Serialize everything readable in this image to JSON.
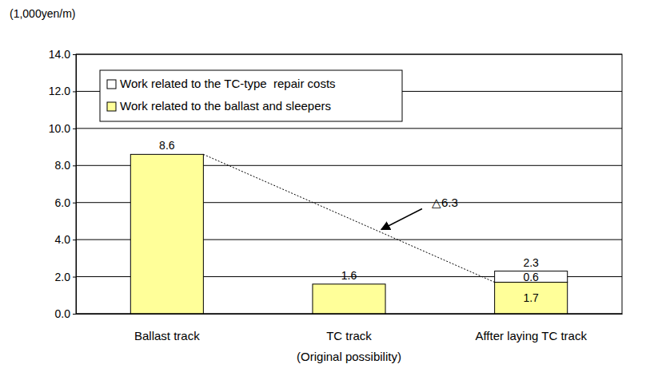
{
  "chart_data": {
    "type": "bar",
    "stacked": true,
    "data_labels": true,
    "grid": true,
    "legend": "upper left",
    "y_label": "(1,000yen/m)",
    "categories": [
      "Ballast track",
      "TC track\n(Original possibility)",
      "Affter laying TC track"
    ],
    "series": [
      {
        "name": "Work related to the ballast and sleepers",
        "color": "#ffff99",
        "values": [
          8.6,
          1.6,
          1.7
        ]
      },
      {
        "name": "Work related to the TC-type  repair costs",
        "color": "#ffffff",
        "values": [
          null,
          null,
          0.6
        ]
      }
    ],
    "totals": [
      8.6,
      1.6,
      2.3
    ],
    "ylim": [
      0,
      14
    ],
    "yticks": [
      {
        "value": 0,
        "label": "0.0"
      },
      {
        "value": 2,
        "label": "2.0"
      },
      {
        "value": 4,
        "label": "4.0"
      },
      {
        "value": 6,
        "label": "6.0"
      },
      {
        "value": 8,
        "label": "8.0"
      },
      {
        "value": 10,
        "label": "10.0"
      },
      {
        "value": 12,
        "label": "12.0"
      },
      {
        "value": 14,
        "label": "14.0"
      }
    ],
    "annotations": [
      {
        "text": "△6.3"
      }
    ]
  }
}
